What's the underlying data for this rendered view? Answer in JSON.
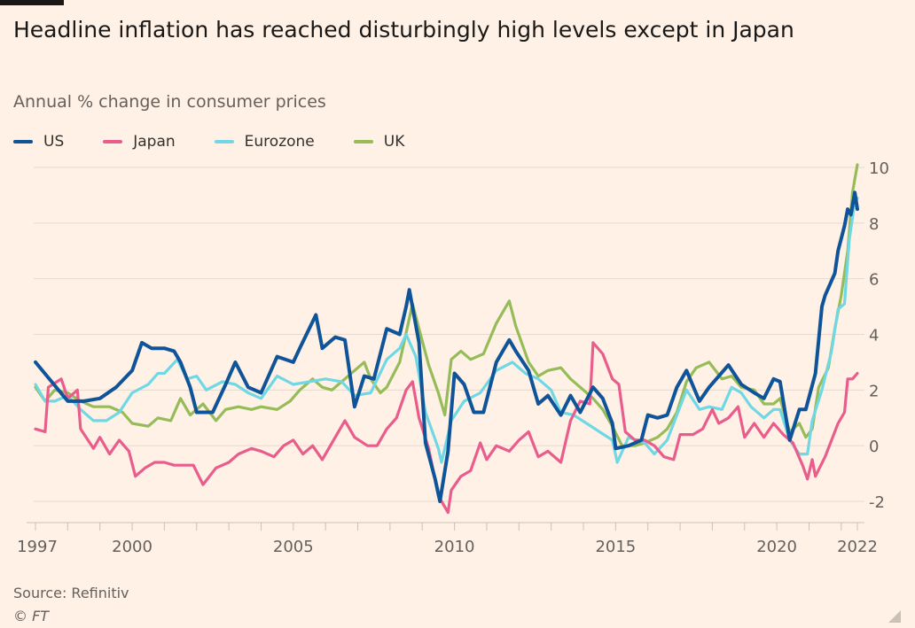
{
  "title": "Headline inflation has reached disturbingly high levels except in Japan",
  "subtitle": "Annual % change in consumer prices",
  "source": "Source: Refinitiv",
  "copyright": "© FT",
  "chart_data": {
    "type": "line",
    "title": "Headline inflation has reached disturbingly high levels except in Japan",
    "ylabel": "Annual % change in consumer prices",
    "xlim": [
      1997,
      2022.5
    ],
    "ylim": [
      -2.5,
      10.5
    ],
    "yticks": [
      -2,
      0,
      2,
      4,
      6,
      8,
      10
    ],
    "xtick_labels": [
      "1997",
      "2000",
      "2005",
      "2010",
      "2015",
      "2020",
      "2022"
    ],
    "grid": true,
    "legend_position": "top-left",
    "y_axis_side": "right",
    "series": [
      {
        "name": "US",
        "color": "#0f5499",
        "x": [
          1997,
          1997.5,
          1998,
          1998.5,
          1999,
          1999.5,
          2000,
          2000.3,
          2000.6,
          2001,
          2001.3,
          2001.5,
          2001.8,
          2002,
          2002.5,
          2002.9,
          2003.2,
          2003.6,
          2004,
          2004.5,
          2005,
          2005.2,
          2005.7,
          2005.9,
          2006.3,
          2006.6,
          2006.9,
          2007.2,
          2007.5,
          2007.9,
          2008.3,
          2008.5,
          2008.6,
          2008.9,
          2009.1,
          2009.4,
          2009.55,
          2009.8,
          2010,
          2010.3,
          2010.6,
          2010.9,
          2011.3,
          2011.7,
          2011.9,
          2012.3,
          2012.6,
          2012.9,
          2013.3,
          2013.6,
          2013.9,
          2014.3,
          2014.6,
          2014.9,
          2015,
          2015.4,
          2015.8,
          2016,
          2016.3,
          2016.6,
          2016.9,
          2017.2,
          2017.6,
          2017.9,
          2018.5,
          2018.9,
          2019.3,
          2019.6,
          2019.9,
          2020.1,
          2020.4,
          2020.7,
          2020.9,
          2021.2,
          2021.4,
          2021.5,
          2021.8,
          2021.9,
          2022.1,
          2022.2,
          2022.3,
          2022.42,
          2022.5
        ],
        "y": [
          3.0,
          2.3,
          1.6,
          1.6,
          1.7,
          2.1,
          2.7,
          3.7,
          3.5,
          3.5,
          3.4,
          3.0,
          2.1,
          1.2,
          1.2,
          2.2,
          3.0,
          2.1,
          1.9,
          3.2,
          3.0,
          3.5,
          4.7,
          3.5,
          3.9,
          3.8,
          1.4,
          2.5,
          2.4,
          4.2,
          4.0,
          5.0,
          5.6,
          3.7,
          0.1,
          -1.2,
          -2.0,
          -0.2,
          2.6,
          2.2,
          1.2,
          1.2,
          3.0,
          3.8,
          3.4,
          2.7,
          1.5,
          1.8,
          1.1,
          1.8,
          1.2,
          2.1,
          1.7,
          0.8,
          -0.1,
          0.0,
          0.2,
          1.1,
          1.0,
          1.1,
          2.1,
          2.7,
          1.6,
          2.1,
          2.9,
          2.2,
          1.9,
          1.7,
          2.4,
          2.3,
          0.2,
          1.3,
          1.3,
          2.6,
          5.0,
          5.4,
          6.2,
          7.0,
          7.9,
          8.5,
          8.3,
          9.1,
          8.5
        ]
      },
      {
        "name": "Japan",
        "color": "#e95d8c",
        "x": [
          1997,
          1997.3,
          1997.4,
          1997.8,
          1998,
          1998.3,
          1998.4,
          1998.8,
          1999,
          1999.3,
          1999.6,
          1999.9,
          2000.1,
          2000.4,
          2000.7,
          2001,
          2001.3,
          2001.6,
          2001.9,
          2002.2,
          2002.6,
          2003,
          2003.3,
          2003.7,
          2004,
          2004.4,
          2004.7,
          2005,
          2005.3,
          2005.6,
          2005.9,
          2006.3,
          2006.6,
          2006.9,
          2007.3,
          2007.6,
          2007.9,
          2008.2,
          2008.5,
          2008.7,
          2008.9,
          2009.2,
          2009.5,
          2009.8,
          2009.9,
          2010.2,
          2010.5,
          2010.8,
          2011,
          2011.3,
          2011.7,
          2012,
          2012.3,
          2012.6,
          2012.9,
          2013.3,
          2013.6,
          2013.9,
          2014.2,
          2014.3,
          2014.6,
          2014.9,
          2015.1,
          2015.3,
          2015.6,
          2015.9,
          2016.2,
          2016.5,
          2016.8,
          2017,
          2017.4,
          2017.7,
          2018,
          2018.2,
          2018.5,
          2018.8,
          2019,
          2019.3,
          2019.6,
          2019.9,
          2020.2,
          2020.5,
          2020.8,
          2020.95,
          2021.1,
          2021.2,
          2021.5,
          2021.7,
          2021.9,
          2022.1,
          2022.2,
          2022.35,
          2022.5
        ],
        "y": [
          0.6,
          0.5,
          2.1,
          2.4,
          1.7,
          2.0,
          0.6,
          -0.1,
          0.3,
          -0.3,
          0.2,
          -0.2,
          -1.1,
          -0.8,
          -0.6,
          -0.6,
          -0.7,
          -0.7,
          -0.7,
          -1.4,
          -0.8,
          -0.6,
          -0.3,
          -0.1,
          -0.2,
          -0.4,
          0.0,
          0.2,
          -0.3,
          0.0,
          -0.5,
          0.3,
          0.9,
          0.3,
          0.0,
          0.0,
          0.6,
          1.0,
          2.0,
          2.3,
          1.0,
          -0.1,
          -1.8,
          -2.4,
          -1.6,
          -1.1,
          -0.9,
          0.1,
          -0.5,
          0.0,
          -0.2,
          0.2,
          0.5,
          -0.4,
          -0.2,
          -0.6,
          0.9,
          1.6,
          1.5,
          3.7,
          3.3,
          2.4,
          2.2,
          0.5,
          0.2,
          0.2,
          0.0,
          -0.4,
          -0.5,
          0.4,
          0.4,
          0.6,
          1.3,
          0.8,
          1.0,
          1.4,
          0.3,
          0.8,
          0.3,
          0.8,
          0.4,
          0.1,
          -0.7,
          -1.2,
          -0.5,
          -1.1,
          -0.4,
          0.2,
          0.8,
          1.2,
          2.4,
          2.4,
          2.6
        ]
      },
      {
        "name": "Eurozone",
        "color": "#6fd8e4",
        "x": [
          1997,
          1997.3,
          1997.6,
          1998,
          1998.4,
          1998.8,
          1999.2,
          1999.6,
          2000,
          2000.5,
          2000.8,
          2001,
          2001.4,
          2001.7,
          2002,
          2002.3,
          2002.8,
          2003.2,
          2003.6,
          2004,
          2004.5,
          2005,
          2005.5,
          2006,
          2006.5,
          2006.9,
          2007.4,
          2007.9,
          2008.3,
          2008.5,
          2008.8,
          2009.1,
          2009.5,
          2009.6,
          2009.9,
          2010.3,
          2010.8,
          2011.3,
          2011.8,
          2012.2,
          2012.6,
          2013,
          2013.3,
          2013.7,
          2014.1,
          2014.5,
          2014.9,
          2015.05,
          2015.4,
          2015.9,
          2016.2,
          2016.6,
          2016.9,
          2017.2,
          2017.6,
          2017.9,
          2018.3,
          2018.6,
          2018.9,
          2019.2,
          2019.6,
          2019.9,
          2020.1,
          2020.4,
          2020.7,
          2020.95,
          2021.1,
          2021.4,
          2021.7,
          2021.9,
          2022.1,
          2022.25,
          2022.4,
          2022.5
        ],
        "y": [
          2.2,
          1.6,
          1.6,
          1.8,
          1.3,
          0.9,
          0.9,
          1.2,
          1.9,
          2.2,
          2.6,
          2.6,
          3.1,
          2.4,
          2.5,
          2.0,
          2.3,
          2.2,
          1.9,
          1.7,
          2.5,
          2.2,
          2.3,
          2.4,
          2.3,
          1.8,
          1.9,
          3.1,
          3.5,
          4.0,
          3.2,
          1.2,
          -0.1,
          -0.6,
          0.9,
          1.6,
          1.9,
          2.7,
          3.0,
          2.6,
          2.4,
          2.0,
          1.2,
          1.1,
          0.8,
          0.5,
          0.2,
          -0.6,
          0.3,
          0.1,
          -0.3,
          0.2,
          1.1,
          2.0,
          1.3,
          1.4,
          1.3,
          2.1,
          1.9,
          1.4,
          1.0,
          1.3,
          1.3,
          0.2,
          -0.3,
          -0.3,
          0.9,
          2.0,
          3.4,
          4.9,
          5.1,
          7.4,
          8.6,
          8.9
        ]
      },
      {
        "name": "UK",
        "color": "#96bc59",
        "x": [
          1997,
          1997.3,
          1997.6,
          1998,
          1998.4,
          1998.8,
          1999.3,
          1999.7,
          2000,
          2000.5,
          2000.8,
          2001.2,
          2001.5,
          2001.8,
          2002.2,
          2002.6,
          2002.9,
          2003.3,
          2003.7,
          2004,
          2004.5,
          2004.9,
          2005.2,
          2005.6,
          2005.9,
          2006.2,
          2006.6,
          2006.9,
          2007.2,
          2007.4,
          2007.7,
          2007.9,
          2008.3,
          2008.7,
          2008.9,
          2009.2,
          2009.5,
          2009.7,
          2009.9,
          2010.2,
          2010.5,
          2010.9,
          2011.3,
          2011.7,
          2011.9,
          2012.3,
          2012.6,
          2012.9,
          2013.3,
          2013.6,
          2013.9,
          2014.3,
          2014.6,
          2014.9,
          2015.2,
          2015.6,
          2015.9,
          2016.3,
          2016.6,
          2016.9,
          2017.2,
          2017.5,
          2017.9,
          2018.3,
          2018.6,
          2018.9,
          2019.3,
          2019.6,
          2019.9,
          2020.1,
          2020.4,
          2020.7,
          2020.9,
          2021.1,
          2021.3,
          2021.6,
          2021.8,
          2022,
          2022.2,
          2022.35,
          2022.5
        ],
        "y": [
          2.1,
          1.6,
          2.0,
          1.9,
          1.6,
          1.4,
          1.4,
          1.2,
          0.8,
          0.7,
          1.0,
          0.9,
          1.7,
          1.1,
          1.5,
          0.9,
          1.3,
          1.4,
          1.3,
          1.4,
          1.3,
          1.6,
          2.0,
          2.4,
          2.1,
          2.0,
          2.4,
          2.7,
          3.0,
          2.4,
          1.9,
          2.1,
          3.0,
          5.1,
          4.2,
          2.9,
          1.9,
          1.1,
          3.1,
          3.4,
          3.1,
          3.3,
          4.4,
          5.2,
          4.3,
          3.0,
          2.5,
          2.7,
          2.8,
          2.4,
          2.1,
          1.7,
          1.3,
          0.7,
          0.0,
          0.0,
          0.1,
          0.3,
          0.6,
          1.2,
          2.3,
          2.8,
          3.0,
          2.4,
          2.5,
          2.1,
          2.0,
          1.5,
          1.5,
          1.7,
          0.5,
          0.8,
          0.3,
          0.6,
          2.1,
          2.8,
          4.2,
          5.4,
          7.0,
          9.1,
          10.1
        ]
      }
    ]
  }
}
